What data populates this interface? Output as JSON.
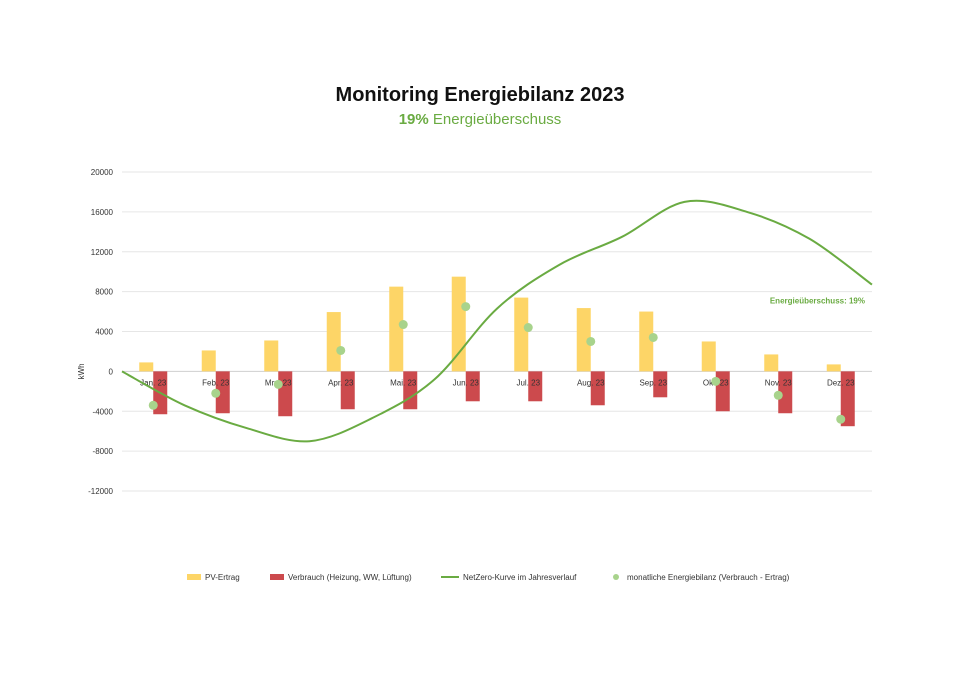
{
  "colors": {
    "pv": "#fdd567",
    "consumption": "#cc4a4d",
    "netzero": "#6aab42",
    "balance": "#a8d38c",
    "accent": "#6aab42",
    "grid": "#e6e6e6"
  },
  "chart_data": {
    "type": "bar",
    "title": "Monitoring Energiebilanz 2023",
    "subtitle": {
      "highlight": "19%",
      "text": " Energieüberschuss"
    },
    "xlabel": "",
    "ylabel": "kWh",
    "ylim": [
      -12000,
      20000
    ],
    "yticks": [
      20000,
      16000,
      12000,
      8000,
      4000,
      0,
      -4000,
      -8000,
      -12000
    ],
    "grid": true,
    "legend_position": "bottom",
    "categories": [
      "Jan. 23",
      "Feb. 23",
      "Mrz. 23",
      "Apr. 23",
      "Mai. 23",
      "Jun. 23",
      "Jul. 23",
      "Aug. 23",
      "Sep. 23",
      "Okt. 23",
      "Nov. 23",
      "Dez. 23"
    ],
    "series": [
      {
        "name": "PV-Ertrag",
        "type": "bar",
        "values": [
          900,
          2100,
          3100,
          5950,
          8500,
          9500,
          7400,
          6350,
          6000,
          3000,
          1700,
          700
        ]
      },
      {
        "name": "Verbrauch (Heizung, WW, Lüftung)",
        "type": "bar",
        "values": [
          -4300,
          -4200,
          -4500,
          -3800,
          -3800,
          -3000,
          -3000,
          -3400,
          -2600,
          -4000,
          -4200,
          -5500
        ]
      },
      {
        "name": "NetZero-Kurve im Jahresverlauf",
        "type": "line",
        "x": [
          0,
          1,
          2,
          3,
          4,
          5,
          6,
          7,
          8,
          9,
          10,
          11,
          12
        ],
        "values": [
          0,
          -3400,
          -5700,
          -7000,
          -4700,
          -800,
          6300,
          10700,
          13500,
          17000,
          16000,
          13300,
          8700
        ]
      },
      {
        "name": "monatliche Energiebilanz (Verbrauch - Ertrag)",
        "type": "scatter",
        "values": [
          -3400,
          -2200,
          -1300,
          2100,
          4700,
          6500,
          4400,
          3000,
          3400,
          -1000,
          -2400,
          -4800
        ]
      }
    ],
    "annotations": [
      {
        "text": "Energieüberschuss: 19%",
        "x": 12,
        "y": 7100
      }
    ]
  }
}
